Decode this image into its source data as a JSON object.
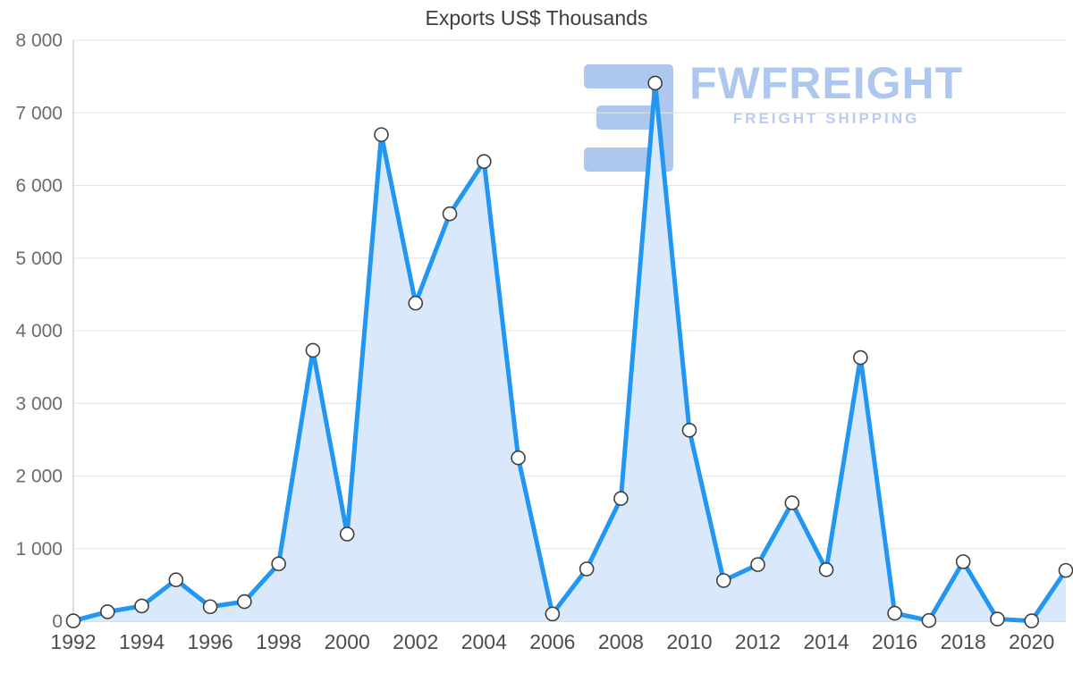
{
  "watermark": {
    "brand": "FWFREIGHT",
    "tagline": "FREIGHT SHIPPING"
  },
  "chart_data": {
    "type": "area",
    "title": "Exports US$ Thousands",
    "xlabel": "",
    "ylabel": "",
    "ylim": [
      0,
      8000
    ],
    "grid": true,
    "legend": false,
    "x": [
      1992,
      1993,
      1994,
      1995,
      1996,
      1997,
      1998,
      1999,
      2000,
      2001,
      2002,
      2003,
      2004,
      2005,
      2006,
      2007,
      2008,
      2009,
      2010,
      2011,
      2012,
      2013,
      2014,
      2015,
      2016,
      2017,
      2018,
      2019,
      2020,
      2021
    ],
    "values": [
      5,
      130,
      210,
      570,
      200,
      270,
      790,
      3730,
      1200,
      6700,
      4380,
      5610,
      6330,
      2250,
      100,
      720,
      1690,
      7410,
      2630,
      560,
      780,
      1630,
      710,
      3630,
      110,
      10,
      820,
      30,
      5,
      700
    ],
    "y_ticks": [
      {
        "value": 8000,
        "label": "8 000"
      },
      {
        "value": 7000,
        "label": "7 000"
      },
      {
        "value": 6000,
        "label": "6 000"
      },
      {
        "value": 5000,
        "label": "5 000"
      },
      {
        "value": 4000,
        "label": "4 000"
      },
      {
        "value": 3000,
        "label": "3 000"
      },
      {
        "value": 2000,
        "label": "2 000"
      },
      {
        "value": 1000,
        "label": "1 000"
      },
      {
        "value": 0,
        "label": "0"
      }
    ],
    "x_ticks": [
      {
        "value": 1992,
        "label": "1992"
      },
      {
        "value": 1994,
        "label": "1994"
      },
      {
        "value": 1996,
        "label": "1996"
      },
      {
        "value": 1998,
        "label": "1998"
      },
      {
        "value": 2000,
        "label": "2000"
      },
      {
        "value": 2002,
        "label": "2002"
      },
      {
        "value": 2004,
        "label": "2004"
      },
      {
        "value": 2006,
        "label": "2006"
      },
      {
        "value": 2008,
        "label": "2008"
      },
      {
        "value": 2010,
        "label": "2010"
      },
      {
        "value": 2012,
        "label": "2012"
      },
      {
        "value": 2014,
        "label": "2014"
      },
      {
        "value": 2016,
        "label": "2016"
      },
      {
        "value": 2018,
        "label": "2018"
      },
      {
        "value": 2020,
        "label": "2020"
      }
    ],
    "colors": {
      "line": "#2196f3",
      "fill": "#d9e9fb",
      "marker_fill": "#ffffff",
      "marker_stroke": "#3f3f3f",
      "grid": "#e4e4e4",
      "axis": "#bdbdbd",
      "y_tick_label": "#6b6b6b",
      "x_tick_label": "#4d4d4d",
      "title": "#3c3c3c",
      "watermark": "#aec7ef",
      "watermark_tagline": "#b9cdf1"
    }
  }
}
